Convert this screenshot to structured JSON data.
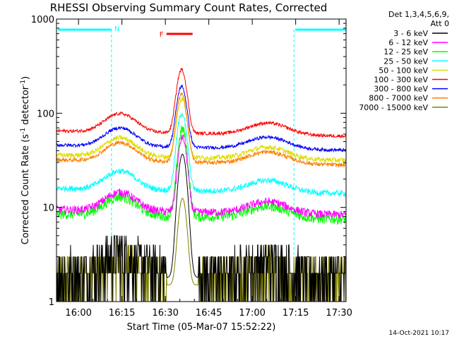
{
  "chart_data": {
    "type": "line",
    "title": "RHESSI Observing Summary Count Rates, Corrected",
    "xlabel": "Start Time (05-Mar-07 15:52:22)",
    "ylabel_main": "Corrected Count Rate (s",
    "ylabel_sup1": "-1",
    "ylabel_mid": " detector",
    "ylabel_sup2": "-1",
    "ylabel_end": ")",
    "x_unit": "minutes after 15:52:22",
    "xlim": [
      0,
      100
    ],
    "ylim": [
      1,
      1000
    ],
    "y_scale": "log",
    "x_ticks": [
      {
        "value": 7.6,
        "label": "16:00"
      },
      {
        "value": 22.6,
        "label": "16:15"
      },
      {
        "value": 37.6,
        "label": "16:30"
      },
      {
        "value": 52.6,
        "label": "16:45"
      },
      {
        "value": 67.6,
        "label": "17:00"
      },
      {
        "value": 82.6,
        "label": "17:15"
      },
      {
        "value": 97.6,
        "label": "17:30"
      }
    ],
    "y_ticks": [
      {
        "value": 1,
        "label": "1"
      },
      {
        "value": 10,
        "label": "10"
      },
      {
        "value": 100,
        "label": "100"
      },
      {
        "value": 1000,
        "label": "1000"
      }
    ],
    "legend_header": [
      "Det 1,3,4,5,6,9,",
      "Att 0"
    ],
    "legend_position": "right",
    "timestamp": "14-Oct-2021 10:17",
    "night_marker": "N",
    "flare_marker": "F",
    "night_periods": [
      [
        0,
        19
      ],
      [
        82,
        100
      ]
    ],
    "flare_period": [
      38,
      47
    ],
    "night_color": "#00ffff",
    "flare_color": "#ff0000",
    "series": [
      {
        "name": "3 - 6 keV",
        "color": "#000000",
        "base": 1.8,
        "noise": 0.55,
        "peak": 35,
        "peak_t": 43.5,
        "peak_w": 1.8
      },
      {
        "name": "6 - 12 keV",
        "color": "#ff00ff",
        "base": 9.5,
        "noise": 0.1,
        "peak": 47,
        "peak_t": 43.5,
        "peak_w": 1.8
      },
      {
        "name": "12 - 25 keV",
        "color": "#00ff00",
        "base": 8.5,
        "noise": 0.12,
        "peak": 60,
        "peak_t": 43.5,
        "peak_w": 1.9
      },
      {
        "name": "25 - 50 keV",
        "color": "#00ffff",
        "base": 16,
        "noise": 0.07,
        "peak": 85,
        "peak_t": 43.3,
        "peak_w": 2.0
      },
      {
        "name": "50 - 100 keV",
        "color": "#dddd00",
        "base": 36,
        "noise": 0.06,
        "peak": 110,
        "peak_t": 43.3,
        "peak_w": 2.0
      },
      {
        "name": "100 - 300 keV",
        "color": "#ff0000",
        "base": 65,
        "noise": 0.04,
        "peak": 230,
        "peak_t": 43.2,
        "peak_w": 2.1
      },
      {
        "name": "300 - 800 keV",
        "color": "#0000ff",
        "base": 46,
        "noise": 0.04,
        "peak": 150,
        "peak_t": 43.2,
        "peak_w": 2.1
      },
      {
        "name": "800 - 7000 keV",
        "color": "#ff8000",
        "base": 32,
        "noise": 0.05,
        "peak": 130,
        "peak_t": 43.2,
        "peak_w": 2.1
      },
      {
        "name": "7000 - 15000 keV",
        "color": "#808000",
        "base": 1.5,
        "noise": 0.6,
        "peak": 11,
        "peak_t": 43.5,
        "peak_w": 1.7
      }
    ]
  }
}
